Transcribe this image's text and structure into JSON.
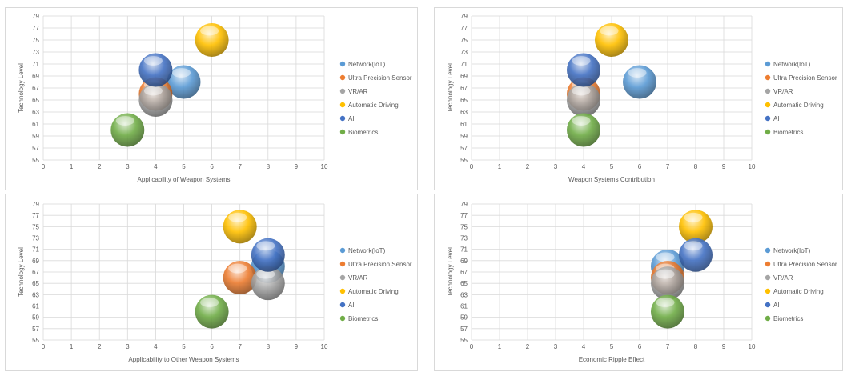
{
  "chart_data": [
    {
      "type": "scatter",
      "xlabel": "Applicability of Weapon Systems",
      "ylabel": "Technology Level",
      "xlim": [
        0,
        10
      ],
      "ylim": [
        55,
        79
      ],
      "xticks": [
        "0",
        "1",
        "2",
        "3",
        "4",
        "5",
        "6",
        "7",
        "8",
        "9",
        "10"
      ],
      "yticks": [
        "55",
        "57",
        "59",
        "61",
        "63",
        "65",
        "67",
        "69",
        "71",
        "73",
        "75",
        "77",
        "79"
      ],
      "grid": true,
      "legend_position": "right",
      "series": [
        {
          "name": "Network(IoT)",
          "color": "#5b9bd5",
          "x": 5,
          "y": 68
        },
        {
          "name": "Ultra Precision Sensor",
          "color": "#ed7d31",
          "x": 4,
          "y": 66
        },
        {
          "name": "VR/AR",
          "color": "#a5a5a5",
          "x": 4,
          "y": 65
        },
        {
          "name": "Automatic Driving",
          "color": "#ffc000",
          "x": 6,
          "y": 75
        },
        {
          "name": "AI",
          "color": "#4472c4",
          "x": 4,
          "y": 70
        },
        {
          "name": "Biometrics",
          "color": "#70ad47",
          "x": 3,
          "y": 60
        }
      ]
    },
    {
      "type": "scatter",
      "xlabel": "Weapon Systems Contribution",
      "ylabel": "Technology Level",
      "xlim": [
        0,
        10
      ],
      "ylim": [
        55,
        79
      ],
      "xticks": [
        "0",
        "1",
        "2",
        "3",
        "4",
        "5",
        "6",
        "7",
        "8",
        "9",
        "10"
      ],
      "yticks": [
        "55",
        "57",
        "59",
        "61",
        "63",
        "65",
        "67",
        "69",
        "71",
        "73",
        "75",
        "77",
        "79"
      ],
      "grid": true,
      "legend_position": "right",
      "series": [
        {
          "name": "Network(IoT)",
          "color": "#5b9bd5",
          "x": 6,
          "y": 68
        },
        {
          "name": "Ultra Precision Sensor",
          "color": "#ed7d31",
          "x": 4,
          "y": 66
        },
        {
          "name": "VR/AR",
          "color": "#a5a5a5",
          "x": 4,
          "y": 65
        },
        {
          "name": "Automatic Driving",
          "color": "#ffc000",
          "x": 5,
          "y": 75
        },
        {
          "name": "AI",
          "color": "#4472c4",
          "x": 4,
          "y": 70
        },
        {
          "name": "Biometrics",
          "color": "#70ad47",
          "x": 4,
          "y": 60
        }
      ]
    },
    {
      "type": "scatter",
      "xlabel": "Applicability to Other Weapon Systems",
      "ylabel": "Technology Level",
      "xlim": [
        0,
        10
      ],
      "ylim": [
        55,
        79
      ],
      "xticks": [
        "0",
        "1",
        "2",
        "3",
        "4",
        "5",
        "6",
        "7",
        "8",
        "9",
        "10"
      ],
      "yticks": [
        "55",
        "57",
        "59",
        "61",
        "63",
        "65",
        "67",
        "69",
        "71",
        "73",
        "75",
        "77",
        "79"
      ],
      "grid": true,
      "legend_position": "right",
      "series": [
        {
          "name": "Network(IoT)",
          "color": "#5b9bd5",
          "x": 8,
          "y": 68
        },
        {
          "name": "Ultra Precision Sensor",
          "color": "#ed7d31",
          "x": 7,
          "y": 66
        },
        {
          "name": "VR/AR",
          "color": "#a5a5a5",
          "x": 8,
          "y": 65
        },
        {
          "name": "Automatic Driving",
          "color": "#ffc000",
          "x": 7,
          "y": 75
        },
        {
          "name": "AI",
          "color": "#4472c4",
          "x": 8,
          "y": 70
        },
        {
          "name": "Biometrics",
          "color": "#70ad47",
          "x": 6,
          "y": 60
        }
      ]
    },
    {
      "type": "scatter",
      "xlabel": "Economic Ripple Effect",
      "ylabel": "Technology Level",
      "xlim": [
        0,
        10
      ],
      "ylim": [
        55,
        79
      ],
      "xticks": [
        "0",
        "1",
        "2",
        "3",
        "4",
        "5",
        "6",
        "7",
        "8",
        "9",
        "10"
      ],
      "yticks": [
        "55",
        "57",
        "59",
        "61",
        "63",
        "65",
        "67",
        "69",
        "71",
        "73",
        "75",
        "77",
        "79"
      ],
      "grid": true,
      "legend_position": "right",
      "series": [
        {
          "name": "Network(IoT)",
          "color": "#5b9bd5",
          "x": 7,
          "y": 68
        },
        {
          "name": "Ultra Precision Sensor",
          "color": "#ed7d31",
          "x": 7,
          "y": 66
        },
        {
          "name": "VR/AR",
          "color": "#a5a5a5",
          "x": 7,
          "y": 65
        },
        {
          "name": "Automatic Driving",
          "color": "#ffc000",
          "x": 8,
          "y": 75
        },
        {
          "name": "AI",
          "color": "#4472c4",
          "x": 8,
          "y": 70
        },
        {
          "name": "Biometrics",
          "color": "#70ad47",
          "x": 7,
          "y": 60
        }
      ]
    }
  ]
}
